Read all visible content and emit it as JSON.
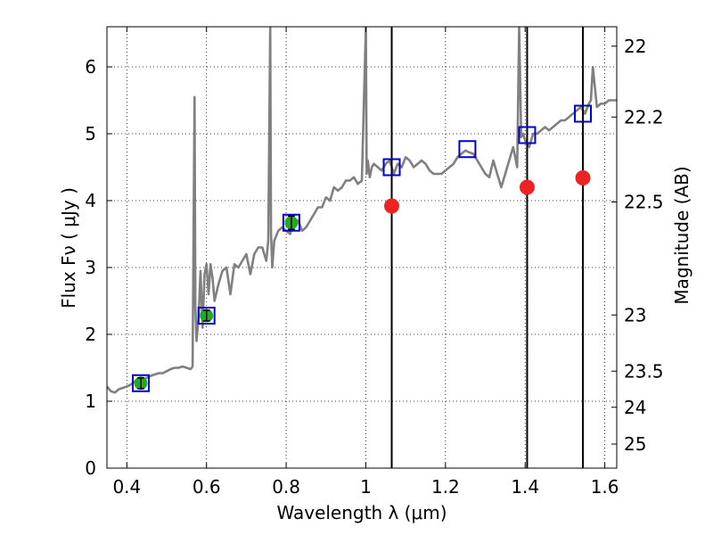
{
  "chart_data": {
    "type": "line",
    "xlabel": "Wavelength  λ (μm)",
    "ylabel": "Flux  Fν  ( μJy )",
    "ylabel_right": "Magnitude (AB)",
    "xlim": [
      0.35,
      1.63
    ],
    "ylim": [
      0,
      6.6
    ],
    "grid": true,
    "x_ticks": [
      "0.4",
      "0.6",
      "0.8",
      "1",
      "1.2",
      "1.4",
      "1.6"
    ],
    "y_ticks": [
      "0",
      "1",
      "2",
      "3",
      "4",
      "5",
      "6"
    ],
    "right_ticks": [
      {
        "label": "22",
        "flux": 6.31
      },
      {
        "label": "22.2",
        "flux": 5.25
      },
      {
        "label": "22.5",
        "flux": 3.98
      },
      {
        "label": "23",
        "flux": 2.29
      },
      {
        "label": "23.5",
        "flux": 1.45
      },
      {
        "label": "24",
        "flux": 0.91
      },
      {
        "label": "25",
        "flux": 0.36
      }
    ],
    "colors": {
      "model": "#808080",
      "photometry": "#22aa22",
      "model_box": "#0000cc",
      "spec_point": "#ee2222",
      "vline": "#000000"
    },
    "series": [
      {
        "kind": "model-spectrum",
        "x": [
          0.35,
          0.36,
          0.37,
          0.38,
          0.39,
          0.4,
          0.41,
          0.42,
          0.43,
          0.44,
          0.45,
          0.46,
          0.47,
          0.48,
          0.49,
          0.5,
          0.51,
          0.52,
          0.53,
          0.54,
          0.55,
          0.56,
          0.565,
          0.57,
          0.572,
          0.575,
          0.58,
          0.585,
          0.59,
          0.595,
          0.6,
          0.605,
          0.61,
          0.615,
          0.62,
          0.63,
          0.64,
          0.65,
          0.66,
          0.67,
          0.68,
          0.69,
          0.7,
          0.71,
          0.72,
          0.73,
          0.74,
          0.75,
          0.755,
          0.76,
          0.762,
          0.765,
          0.77,
          0.78,
          0.79,
          0.8,
          0.81,
          0.82,
          0.83,
          0.84,
          0.85,
          0.86,
          0.87,
          0.88,
          0.89,
          0.9,
          0.91,
          0.92,
          0.93,
          0.94,
          0.95,
          0.96,
          0.97,
          0.98,
          0.99,
          1.0,
          1.002,
          1.005,
          1.01,
          1.015,
          1.02,
          1.03,
          1.04,
          1.05,
          1.06,
          1.07,
          1.08,
          1.09,
          1.1,
          1.11,
          1.12,
          1.13,
          1.14,
          1.15,
          1.16,
          1.17,
          1.18,
          1.19,
          1.2,
          1.21,
          1.22,
          1.23,
          1.24,
          1.25,
          1.26,
          1.27,
          1.28,
          1.29,
          1.3,
          1.31,
          1.32,
          1.33,
          1.34,
          1.35,
          1.36,
          1.37,
          1.38,
          1.385,
          1.39,
          1.395,
          1.4,
          1.41,
          1.42,
          1.43,
          1.44,
          1.45,
          1.46,
          1.47,
          1.48,
          1.49,
          1.5,
          1.51,
          1.52,
          1.53,
          1.54,
          1.55,
          1.56,
          1.565,
          1.57,
          1.58,
          1.59,
          1.6,
          1.61,
          1.62,
          1.63
        ],
        "y": [
          1.22,
          1.15,
          1.13,
          1.18,
          1.2,
          1.22,
          1.25,
          1.3,
          1.3,
          1.32,
          1.35,
          1.38,
          1.4,
          1.42,
          1.42,
          1.45,
          1.48,
          1.5,
          1.5,
          1.52,
          1.5,
          1.48,
          1.52,
          5.55,
          2.4,
          1.9,
          2.25,
          2.95,
          2.1,
          2.9,
          3.05,
          2.6,
          3.05,
          2.85,
          2.5,
          2.75,
          2.95,
          3.0,
          2.6,
          3.05,
          3.0,
          3.1,
          3.2,
          2.9,
          3.2,
          3.3,
          3.3,
          3.1,
          3.4,
          6.6,
          3.5,
          3.0,
          3.4,
          3.55,
          3.6,
          3.55,
          3.5,
          3.7,
          3.7,
          3.55,
          3.6,
          3.7,
          3.8,
          3.9,
          3.9,
          4.05,
          4.0,
          4.2,
          4.15,
          4.2,
          4.3,
          4.3,
          4.35,
          4.25,
          4.3,
          6.6,
          4.4,
          4.6,
          4.35,
          4.5,
          4.55,
          4.5,
          4.45,
          4.55,
          4.6,
          4.4,
          4.55,
          4.5,
          4.65,
          4.6,
          4.5,
          4.55,
          4.6,
          4.55,
          4.45,
          4.4,
          4.4,
          4.4,
          4.45,
          4.5,
          4.55,
          4.65,
          4.7,
          4.75,
          4.72,
          4.7,
          4.6,
          4.5,
          4.4,
          4.35,
          4.6,
          4.4,
          4.2,
          4.4,
          4.6,
          4.8,
          4.5,
          6.6,
          4.95,
          5.0,
          4.9,
          4.8,
          5.0,
          5.0,
          5.05,
          5.1,
          5.05,
          5.1,
          5.15,
          5.2,
          5.2,
          5.25,
          5.3,
          5.35,
          5.4,
          5.3,
          5.45,
          5.5,
          6.0,
          5.4,
          5.45,
          5.45,
          5.5,
          5.5,
          5.5
        ]
      },
      {
        "kind": "photometry",
        "x": [
          0.435,
          0.6,
          0.813
        ],
        "y": [
          1.27,
          2.28,
          3.67
        ],
        "yerr": [
          0.08,
          0.08,
          0.1
        ]
      },
      {
        "kind": "model-box",
        "x": [
          0.435,
          0.6,
          0.813,
          1.065,
          1.255,
          1.405,
          1.545
        ],
        "y": [
          1.27,
          2.28,
          3.67,
          4.5,
          4.77,
          4.98,
          5.3
        ]
      },
      {
        "kind": "spec-point",
        "x": [
          1.065,
          1.405,
          1.545
        ],
        "y": [
          3.92,
          4.2,
          4.34
        ]
      }
    ],
    "vlines": [
      1.065,
      1.405,
      1.545
    ]
  }
}
